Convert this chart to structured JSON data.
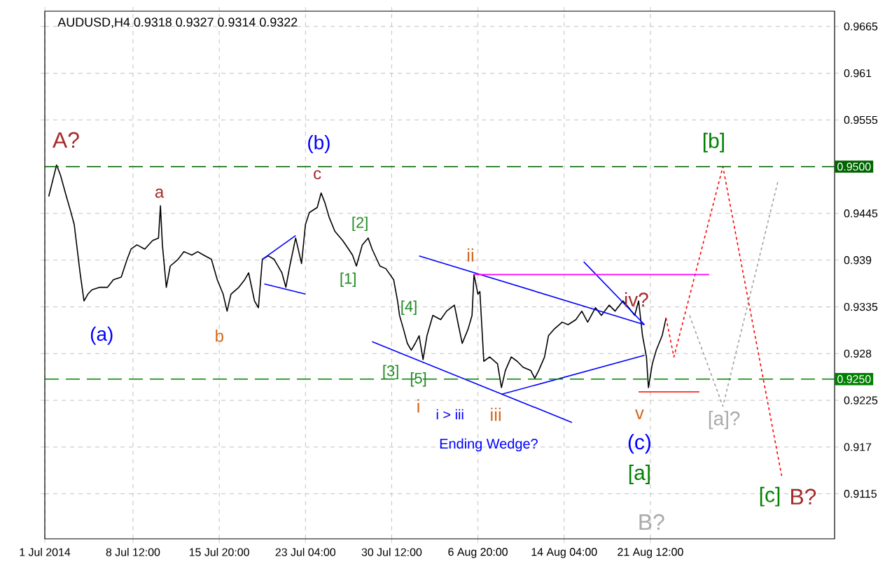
{
  "chart_data": {
    "type": "line",
    "title": "AUDUSD,H4  0.9318 0.9327 0.9314 0.9322",
    "xlim": [
      "2014-07-01T00:00",
      "2014-09-06T04:00"
    ],
    "ylim": [
      0.9062,
      0.9683
    ],
    "xticks": [
      {
        "value": "2014-07-01T00:00",
        "label": "1 Jul 2014"
      },
      {
        "value": "2014-07-08T12:00",
        "label": "8 Jul 12:00"
      },
      {
        "value": "2014-07-15T20:00",
        "label": "15 Jul 20:00"
      },
      {
        "value": "2014-07-23T04:00",
        "label": "23 Jul 04:00"
      },
      {
        "value": "2014-07-30T12:00",
        "label": "30 Jul 12:00"
      },
      {
        "value": "2014-08-06T20:00",
        "label": "6 Aug 20:00"
      },
      {
        "value": "2014-08-14T04:00",
        "label": "14 Aug 04:00"
      },
      {
        "value": "2014-08-21T12:00",
        "label": "21 Aug 12:00"
      }
    ],
    "yticks": [
      0.9115,
      0.917,
      0.9225,
      0.928,
      0.9335,
      0.939,
      0.9445,
      0.9555,
      0.961,
      0.9665
    ],
    "grid": true,
    "marker": "none",
    "series": [
      {
        "color": "#000000",
        "line_style": "solid",
        "x": [
          "2014-07-01T08:00",
          "2014-07-02T00:00",
          "2014-07-02T08:00",
          "2014-07-02T20:00",
          "2014-07-03T04:00",
          "2014-07-03T12:00",
          "2014-07-04T00:00",
          "2014-07-04T08:00",
          "2014-07-04T16:00",
          "2014-07-05T00:00",
          "2014-07-05T16:00",
          "2014-07-06T08:00",
          "2014-07-06T20:00",
          "2014-07-07T12:00",
          "2014-07-08T00:00",
          "2014-07-08T08:00",
          "2014-07-08T20:00",
          "2014-07-09T12:00",
          "2014-07-10T04:00",
          "2014-07-10T16:00",
          "2014-07-10T20:00",
          "2014-07-11T00:00",
          "2014-07-11T08:00",
          "2014-07-11T16:00",
          "2014-07-12T08:00",
          "2014-07-12T20:00",
          "2014-07-13T12:00",
          "2014-07-14T00:00",
          "2014-07-14T12:00",
          "2014-07-15T04:00",
          "2014-07-15T16:00",
          "2014-07-16T04:00",
          "2014-07-16T12:00",
          "2014-07-16T20:00",
          "2014-07-17T12:00",
          "2014-07-18T00:00",
          "2014-07-18T08:00",
          "2014-07-18T20:00",
          "2014-07-19T04:00",
          "2014-07-19T12:00",
          "2014-07-20T00:00",
          "2014-07-20T12:00",
          "2014-07-21T04:00",
          "2014-07-21T12:00",
          "2014-07-21T20:00",
          "2014-07-22T08:00",
          "2014-07-22T20:00",
          "2014-07-23T04:00",
          "2014-07-23T12:00",
          "2014-07-24T04:00",
          "2014-07-24T12:00",
          "2014-07-24T20:00",
          "2014-07-25T04:00",
          "2014-07-25T16:00",
          "2014-07-26T08:00",
          "2014-07-26T20:00",
          "2014-07-27T04:00",
          "2014-07-27T12:00",
          "2014-07-28T00:00",
          "2014-07-28T12:00",
          "2014-07-28T20:00",
          "2014-07-29T12:00",
          "2014-07-30T00:00",
          "2014-07-30T16:00",
          "2014-07-31T00:00",
          "2014-07-31T04:00",
          "2014-07-31T12:00",
          "2014-07-31T20:00",
          "2014-08-01T04:00",
          "2014-08-01T12:00",
          "2014-08-01T20:00",
          "2014-08-02T04:00",
          "2014-08-02T12:00",
          "2014-08-03T00:00",
          "2014-08-03T16:00",
          "2014-08-04T04:00",
          "2014-08-04T20:00",
          "2014-08-05T04:00",
          "2014-08-05T12:00",
          "2014-08-06T00:00",
          "2014-08-06T08:00",
          "2014-08-06T12:00",
          "2014-08-06T20:00",
          "2014-08-07T00:00",
          "2014-08-07T08:00",
          "2014-08-07T20:00",
          "2014-08-08T12:00",
          "2014-08-08T20:00",
          "2014-08-09T04:00",
          "2014-08-09T16:00",
          "2014-08-10T04:00",
          "2014-08-10T16:00",
          "2014-08-11T08:00",
          "2014-08-11T16:00",
          "2014-08-12T00:00",
          "2014-08-12T12:00",
          "2014-08-12T20:00",
          "2014-08-13T08:00",
          "2014-08-14T00:00",
          "2014-08-14T12:00",
          "2014-08-15T04:00",
          "2014-08-15T16:00",
          "2014-08-16T04:00",
          "2014-08-16T20:00",
          "2014-08-17T08:00",
          "2014-08-18T00:00",
          "2014-08-18T12:00",
          "2014-08-19T04:00",
          "2014-08-19T16:00",
          "2014-08-20T04:00",
          "2014-08-20T12:00",
          "2014-08-20T20:00",
          "2014-08-21T04:00",
          "2014-08-21T08:00",
          "2014-08-21T16:00",
          "2014-08-22T00:00",
          "2014-08-22T12:00",
          "2014-08-22T20:00"
        ],
        "values": [
          0.9465,
          0.9502,
          0.949,
          0.9465,
          0.9449,
          0.9432,
          0.9375,
          0.9342,
          0.935,
          0.9355,
          0.9358,
          0.9358,
          0.9367,
          0.937,
          0.9391,
          0.9403,
          0.9408,
          0.9403,
          0.9413,
          0.9416,
          0.9454,
          0.9408,
          0.9358,
          0.9383,
          0.9391,
          0.94,
          0.9396,
          0.94,
          0.9396,
          0.9391,
          0.9367,
          0.935,
          0.933,
          0.935,
          0.9358,
          0.9367,
          0.9375,
          0.9342,
          0.9334,
          0.9391,
          0.9395,
          0.9391,
          0.9375,
          0.9358,
          0.9383,
          0.9416,
          0.9386,
          0.9432,
          0.9446,
          0.9452,
          0.9469,
          0.9457,
          0.9441,
          0.9424,
          0.9413,
          0.9403,
          0.9396,
          0.9383,
          0.9408,
          0.9416,
          0.9403,
          0.9383,
          0.938,
          0.9367,
          0.9342,
          0.9325,
          0.9309,
          0.9292,
          0.9284,
          0.9292,
          0.9301,
          0.9273,
          0.9301,
          0.9325,
          0.932,
          0.933,
          0.9337,
          0.9314,
          0.9292,
          0.9309,
          0.9325,
          0.9373,
          0.935,
          0.9353,
          0.9271,
          0.9276,
          0.9268,
          0.924,
          0.926,
          0.9276,
          0.9271,
          0.9264,
          0.926,
          0.9251,
          0.926,
          0.9276,
          0.9301,
          0.9309,
          0.9317,
          0.9314,
          0.932,
          0.933,
          0.9317,
          0.9334,
          0.9325,
          0.9337,
          0.933,
          0.9342,
          0.9334,
          0.9325,
          0.9342,
          0.9301,
          0.9276,
          0.924,
          0.9268,
          0.9284,
          0.9301,
          0.9322
        ]
      },
      {
        "color": "#ff0000",
        "line_style": "dotted",
        "x": [
          "2014-08-22T20:00",
          "2014-08-23T12:00",
          "2014-08-27T16:00",
          "2014-09-01T16:00"
        ],
        "values": [
          0.9322,
          0.9276,
          0.95,
          0.9136
        ]
      },
      {
        "color": "#a0a0a0",
        "line_style": "dotted",
        "x": [
          "2014-08-24T20:00",
          "2014-08-27T16:00",
          "2014-09-01T08:00"
        ],
        "values": [
          0.9325,
          0.9218,
          0.9482
        ]
      },
      {
        "color": "#0000ff",
        "line_style": "solid",
        "x": [
          "2014-08-01T20:00",
          "2014-08-21T00:00"
        ],
        "values": [
          0.9395,
          0.9314
        ]
      },
      {
        "color": "#0000ff",
        "line_style": "solid",
        "x": [
          "2014-07-28T20:00",
          "2014-08-14T20:00"
        ],
        "values": [
          0.9294,
          0.9199
        ]
      },
      {
        "color": "#0000ff",
        "line_style": "solid",
        "x": [
          "2014-08-08T20:00",
          "2014-08-21T00:00"
        ],
        "values": [
          0.9232,
          0.9278
        ]
      },
      {
        "color": "#0000ff",
        "line_style": "solid",
        "x": [
          "2014-08-15T20:00",
          "2014-08-21T00:00"
        ],
        "values": [
          0.9388,
          0.9314
        ]
      },
      {
        "color": "#0000ff",
        "line_style": "solid",
        "x": [
          "2014-07-19T12:00",
          "2014-07-22T08:00"
        ],
        "values": [
          0.9391,
          0.9419
        ]
      },
      {
        "color": "#0000ff",
        "line_style": "solid",
        "x": [
          "2014-07-19T16:00",
          "2014-07-23T04:00"
        ],
        "values": [
          0.9362,
          0.935
        ]
      },
      {
        "color": "#ff00ff",
        "line_style": "solid",
        "x": [
          "2014-08-06T12:00",
          "2014-08-26T12:00"
        ],
        "values": [
          0.9373,
          0.9373
        ]
      },
      {
        "color": "#ff0000",
        "line_style": "solid",
        "x": [
          "2014-08-20T12:00",
          "2014-08-25T16:00"
        ],
        "values": [
          0.9235,
          0.9235
        ]
      }
    ],
    "ref_lines": [
      {
        "axis": "y",
        "value": 0.95,
        "label": "0.9500",
        "color": "#006400",
        "line_style": "dashed"
      },
      {
        "axis": "y",
        "value": 0.925,
        "label": "0.9250",
        "color": "#008000",
        "line_style": "dashed"
      }
    ],
    "annotations": [
      "A?",
      "a",
      "(a)",
      "b",
      "(b)",
      "c",
      "[1]",
      "[2]",
      "[3]",
      "[4]",
      "[5]",
      "i",
      "ii",
      "iii",
      "i > iii",
      "Ending Wedge?",
      "iv?",
      "v",
      "(c)",
      "[a]",
      "B?",
      "[b]",
      "[a]?",
      "[c]",
      "B?"
    ]
  }
}
